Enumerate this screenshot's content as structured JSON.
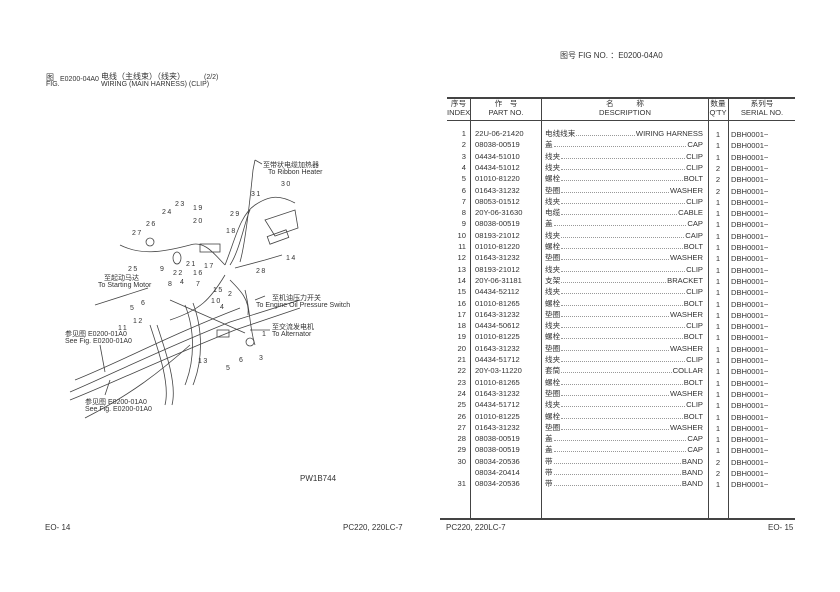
{
  "top_fig_no": "图号  FIG NO.  ：E0200-04A0",
  "figure": {
    "fig_cn": "图",
    "fig_en": "FIG.",
    "number": "E0200-04A0",
    "title_cn": "电线（主线束）（线夹）",
    "title_en": "WIRING (MAIN HARNESS) (CLIP)",
    "sheet": "(2/2)"
  },
  "diagram": {
    "callouts": [
      "30",
      "31",
      "23",
      "19",
      "29",
      "24",
      "20",
      "26",
      "18",
      "27",
      "14",
      "21",
      "22",
      "25",
      "28",
      "17",
      "16",
      "9",
      "15",
      "8",
      "4",
      "7",
      "10",
      "2",
      "6",
      "4",
      "5",
      "12",
      "11",
      "1",
      "13",
      "6",
      "3",
      "5"
    ],
    "labels": {
      "ribbon_cn": "至带状电缆加热器",
      "ribbon_en": "To Ribbon Heater",
      "starter_cn": "至起动马达",
      "starter_en": "To Starting Motor",
      "oil_cn": "至机油压力开关",
      "oil_en": "To Engine Oil Pressure Switch",
      "alt_cn": "至交流发电机",
      "alt_en": "To Alternator",
      "see1_cn": "参见图 E0200-01A0",
      "see1_en": "See Fig. E0200-01A0",
      "see2_cn": "参见图 E0200-01A0",
      "see2_en": "See Fig. E0200-01A0"
    },
    "drawing_code": "PW1B744"
  },
  "table": {
    "headers": {
      "index_cn": "序号",
      "index_en": "INDEX",
      "part_cn": "作　号",
      "part_en": "PART NO.",
      "desc_cn": "名　　　称",
      "desc_en": "DESCRIPTION",
      "qty_cn": "数量",
      "qty_en": "Q'TY",
      "serial_cn": "系列号",
      "serial_en": "SERIAL NO."
    },
    "rows": [
      {
        "index": "1",
        "part": "22U-06-21420",
        "cn": "电线线束",
        "en": "WIRING HARNESS",
        "qty": "1",
        "serial": "DBH0001~"
      },
      {
        "index": "2",
        "part": "08038-00519",
        "cn": "盖",
        "en": "CAP",
        "qty": "1",
        "serial": "DBH0001~"
      },
      {
        "index": "3",
        "part": "04434-51010",
        "cn": "线夹",
        "en": "CLIP",
        "qty": "1",
        "serial": "DBH0001~"
      },
      {
        "index": "4",
        "part": "04434-51012",
        "cn": "线夹",
        "en": "CLIP",
        "qty": "2",
        "serial": "DBH0001~"
      },
      {
        "index": "5",
        "part": "01010-81220",
        "cn": "螺栓",
        "en": "BOLT",
        "qty": "2",
        "serial": "DBH0001~"
      },
      {
        "index": "6",
        "part": "01643-31232",
        "cn": "垫圈",
        "en": "WASHER",
        "qty": "2",
        "serial": "DBH0001~"
      },
      {
        "index": "7",
        "part": "08053-01512",
        "cn": "线夹",
        "en": "CLIP",
        "qty": "1",
        "serial": "DBH0001~"
      },
      {
        "index": "8",
        "part": "20Y-06-31630",
        "cn": "电缆",
        "en": "CABLE",
        "qty": "1",
        "serial": "DBH0001~"
      },
      {
        "index": "9",
        "part": "08038-00519",
        "cn": "盖",
        "en": "CAP",
        "qty": "1",
        "serial": "DBH0001~"
      },
      {
        "index": "10",
        "part": "08193-21012",
        "cn": "线夹",
        "en": "CAIP",
        "qty": "1",
        "serial": "DBH0001~"
      },
      {
        "index": "11",
        "part": "01010-81220",
        "cn": "螺栓",
        "en": "BOLT",
        "qty": "1",
        "serial": "DBH0001~"
      },
      {
        "index": "12",
        "part": "01643-31232",
        "cn": "垫圈",
        "en": "WASHER",
        "qty": "1",
        "serial": "DBH0001~"
      },
      {
        "index": "13",
        "part": "08193-21012",
        "cn": "线夹",
        "en": "CLIP",
        "qty": "1",
        "serial": "DBH0001~"
      },
      {
        "index": "14",
        "part": "20Y-06-31181",
        "cn": "支架",
        "en": "BRACKET",
        "qty": "1",
        "serial": "DBH0001~"
      },
      {
        "index": "15",
        "part": "04434-52112",
        "cn": "线夹",
        "en": "CLIP",
        "qty": "1",
        "serial": "DBH0001~"
      },
      {
        "index": "16",
        "part": "01010-81265",
        "cn": "螺栓",
        "en": "BOLT",
        "qty": "1",
        "serial": "DBH0001~"
      },
      {
        "index": "17",
        "part": "01643-31232",
        "cn": "垫圈",
        "en": "WASHER",
        "qty": "1",
        "serial": "DBH0001~"
      },
      {
        "index": "18",
        "part": "04434-50612",
        "cn": "线夹",
        "en": "CLIP",
        "qty": "1",
        "serial": "DBH0001~"
      },
      {
        "index": "19",
        "part": "01010-81225",
        "cn": "螺栓",
        "en": "BOLT",
        "qty": "1",
        "serial": "DBH0001~"
      },
      {
        "index": "20",
        "part": "01643-31232",
        "cn": "垫圈",
        "en": "WASHER",
        "qty": "1",
        "serial": "DBH0001~"
      },
      {
        "index": "21",
        "part": "04434-51712",
        "cn": "线夹",
        "en": "CLIP",
        "qty": "1",
        "serial": "DBH0001~"
      },
      {
        "index": "22",
        "part": "20Y-03-11220",
        "cn": "套筒",
        "en": "COLLAR",
        "qty": "1",
        "serial": "DBH0001~"
      },
      {
        "index": "23",
        "part": "01010-81265",
        "cn": "螺栓",
        "en": "BOLT",
        "qty": "1",
        "serial": "DBH0001~"
      },
      {
        "index": "24",
        "part": "01643-31232",
        "cn": "垫圈",
        "en": "WASHER",
        "qty": "1",
        "serial": "DBH0001~"
      },
      {
        "index": "25",
        "part": "04434-51712",
        "cn": "线夹",
        "en": "CLIP",
        "qty": "1",
        "serial": "DBH0001~"
      },
      {
        "index": "26",
        "part": "01010-81225",
        "cn": "螺栓",
        "en": "BOLT",
        "qty": "1",
        "serial": "DBH0001~"
      },
      {
        "index": "27",
        "part": "01643-31232",
        "cn": "垫圈",
        "en": "WASHER",
        "qty": "1",
        "serial": "DBH0001~"
      },
      {
        "index": "28",
        "part": "08038-00519",
        "cn": "盖",
        "en": "CAP",
        "qty": "1",
        "serial": "DBH0001~"
      },
      {
        "index": "29",
        "part": "08038-00519",
        "cn": "盖",
        "en": "CAP",
        "qty": "1",
        "serial": "DBH0001~"
      },
      {
        "index": "30",
        "part": "08034-20536",
        "cn": "带",
        "en": "BAND",
        "qty": "2",
        "serial": "DBH0001~"
      },
      {
        "index": "",
        "part": "08034-20414",
        "cn": "带",
        "en": "BAND",
        "qty": "2",
        "serial": "DBH0001~"
      },
      {
        "index": "31",
        "part": "08034-20536",
        "cn": "带",
        "en": "BAND",
        "qty": "1",
        "serial": "DBH0001~"
      }
    ]
  },
  "footer": {
    "left_page": "EO- 14",
    "left_model": "PC220, 220LC-7",
    "right_model": "PC220, 220LC-7",
    "right_page": "EO- 15"
  }
}
